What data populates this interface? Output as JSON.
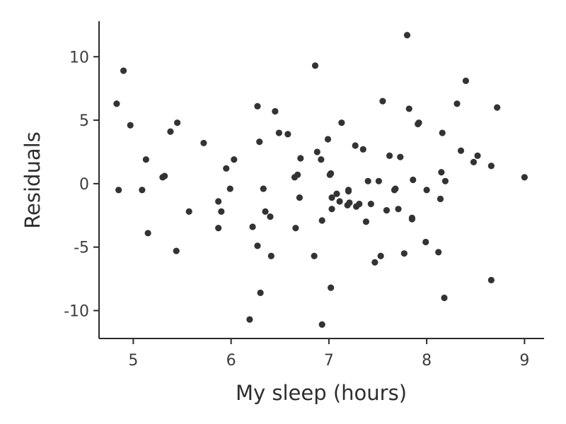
{
  "chart_data": {
    "type": "scatter",
    "title": "",
    "xlabel": "My sleep (hours)",
    "ylabel": "Residuals",
    "xlim": [
      4.65,
      9.2
    ],
    "ylim": [
      -12.2,
      12.8
    ],
    "xticks": [
      5,
      6,
      7,
      8,
      9
    ],
    "yticks": [
      -10,
      -5,
      0,
      5,
      10
    ],
    "grid": false,
    "legend": "none",
    "point_color": "#333333",
    "points": [
      [
        4.83,
        6.3
      ],
      [
        4.85,
        -0.5
      ],
      [
        4.9,
        8.9
      ],
      [
        4.97,
        4.6
      ],
      [
        5.09,
        -0.5
      ],
      [
        5.13,
        1.9
      ],
      [
        5.15,
        -3.9
      ],
      [
        5.3,
        0.5
      ],
      [
        5.32,
        0.6
      ],
      [
        5.38,
        4.1
      ],
      [
        5.44,
        -5.3
      ],
      [
        5.45,
        4.8
      ],
      [
        5.57,
        -2.2
      ],
      [
        5.72,
        3.2
      ],
      [
        5.87,
        -1.4
      ],
      [
        5.87,
        -3.5
      ],
      [
        5.9,
        -2.2
      ],
      [
        5.95,
        1.2
      ],
      [
        5.99,
        -0.4
      ],
      [
        6.03,
        1.9
      ],
      [
        6.19,
        -10.7
      ],
      [
        6.22,
        -3.4
      ],
      [
        6.27,
        6.1
      ],
      [
        6.27,
        -4.9
      ],
      [
        6.29,
        3.3
      ],
      [
        6.3,
        -8.6
      ],
      [
        6.33,
        -0.4
      ],
      [
        6.35,
        -2.2
      ],
      [
        6.4,
        -2.6
      ],
      [
        6.41,
        -5.7
      ],
      [
        6.45,
        5.7
      ],
      [
        6.49,
        4.0
      ],
      [
        6.58,
        3.9
      ],
      [
        6.65,
        0.5
      ],
      [
        6.66,
        -3.5
      ],
      [
        6.68,
        0.7
      ],
      [
        6.7,
        -1.1
      ],
      [
        6.71,
        2.0
      ],
      [
        6.85,
        -5.7
      ],
      [
        6.86,
        9.3
      ],
      [
        6.88,
        2.5
      ],
      [
        6.92,
        1.9
      ],
      [
        6.93,
        -2.9
      ],
      [
        6.93,
        -11.1
      ],
      [
        6.99,
        3.5
      ],
      [
        7.01,
        0.7
      ],
      [
        7.02,
        -8.2
      ],
      [
        7.02,
        0.8
      ],
      [
        7.03,
        -2.0
      ],
      [
        7.03,
        -1.1
      ],
      [
        7.08,
        -0.8
      ],
      [
        7.11,
        -1.4
      ],
      [
        7.13,
        4.8
      ],
      [
        7.19,
        -1.7
      ],
      [
        7.2,
        -0.6
      ],
      [
        7.2,
        -0.5
      ],
      [
        7.21,
        -1.5
      ],
      [
        7.27,
        3.0
      ],
      [
        7.28,
        -1.8
      ],
      [
        7.31,
        -1.6
      ],
      [
        7.35,
        2.7
      ],
      [
        7.38,
        -3.0
      ],
      [
        7.4,
        0.2
      ],
      [
        7.43,
        -1.6
      ],
      [
        7.47,
        -6.2
      ],
      [
        7.51,
        0.2
      ],
      [
        7.53,
        -5.7
      ],
      [
        7.55,
        6.5
      ],
      [
        7.59,
        -2.1
      ],
      [
        7.62,
        2.2
      ],
      [
        7.67,
        -0.5
      ],
      [
        7.68,
        -0.4
      ],
      [
        7.71,
        -2.0
      ],
      [
        7.73,
        2.1
      ],
      [
        7.77,
        -5.5
      ],
      [
        7.8,
        11.7
      ],
      [
        7.82,
        5.9
      ],
      [
        7.85,
        -2.8
      ],
      [
        7.85,
        -2.7
      ],
      [
        7.86,
        0.3
      ],
      [
        7.91,
        4.7
      ],
      [
        7.92,
        4.8
      ],
      [
        7.99,
        -4.6
      ],
      [
        8.0,
        -0.5
      ],
      [
        8.12,
        -5.4
      ],
      [
        8.14,
        -1.2
      ],
      [
        8.15,
        0.9
      ],
      [
        8.16,
        4.0
      ],
      [
        8.18,
        -9.0
      ],
      [
        8.19,
        0.2
      ],
      [
        8.31,
        6.3
      ],
      [
        8.35,
        2.6
      ],
      [
        8.4,
        8.1
      ],
      [
        8.48,
        1.7
      ],
      [
        8.52,
        2.2
      ],
      [
        8.66,
        1.4
      ],
      [
        8.66,
        -7.6
      ],
      [
        8.72,
        6.0
      ],
      [
        9.0,
        0.5
      ]
    ]
  }
}
